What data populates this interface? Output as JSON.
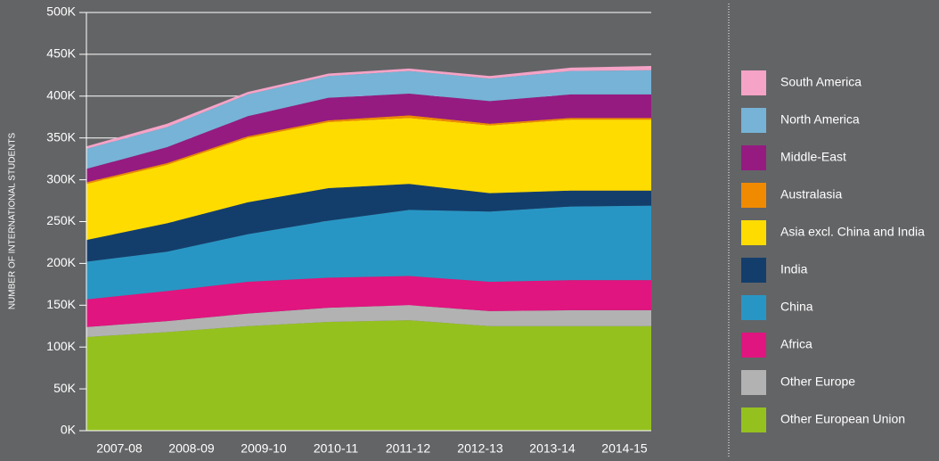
{
  "chart_data": {
    "type": "stacked_area",
    "y_label": "NUMBER OF INTERNATIONAL STUDENTS",
    "categories": [
      "2007-08",
      "2008-09",
      "2009-10",
      "2010-11",
      "2011-12",
      "2012-13",
      "2013-14",
      "2014-15"
    ],
    "series": [
      {
        "name": "Other European Union",
        "color": "#95c11f",
        "values": [
          112,
          118,
          125,
          130,
          132,
          125,
          125,
          125
        ]
      },
      {
        "name": "Other Europe",
        "color": "#b2b2b2",
        "values": [
          12,
          13,
          15,
          17,
          18,
          18,
          19,
          19
        ]
      },
      {
        "name": "Africa",
        "color": "#e0157f",
        "values": [
          33,
          36,
          38,
          36,
          35,
          35,
          36,
          36
        ]
      },
      {
        "name": "China",
        "color": "#2896c4",
        "values": [
          45,
          47,
          57,
          68,
          79,
          84,
          88,
          89
        ]
      },
      {
        "name": "India",
        "color": "#133e6c",
        "values": [
          26,
          34,
          38,
          39,
          31,
          22,
          19,
          18
        ]
      },
      {
        "name": "Asia excl. China and India",
        "color": "#ffdc00",
        "values": [
          67,
          70,
          77,
          79,
          79,
          81,
          85,
          85
        ]
      },
      {
        "name": "Australasia",
        "color": "#f08a00",
        "values": [
          2,
          2,
          2,
          2,
          3,
          2,
          2,
          2
        ]
      },
      {
        "name": "Middle-East",
        "color": "#951b81",
        "values": [
          16,
          19,
          24,
          27,
          26,
          27,
          28,
          28
        ]
      },
      {
        "name": "North America",
        "color": "#76b3d6",
        "values": [
          24,
          24,
          26,
          26,
          27,
          27,
          28,
          29
        ]
      },
      {
        "name": "South America",
        "color": "#f5a3c7",
        "values": [
          3,
          4,
          3,
          3,
          3,
          3,
          4,
          5
        ]
      }
    ],
    "ylim": [
      0,
      500
    ],
    "yticks": [
      {
        "value": 0,
        "label": "0K"
      },
      {
        "value": 50,
        "label": "50K"
      },
      {
        "value": 100,
        "label": "100K"
      },
      {
        "value": 150,
        "label": "150K"
      },
      {
        "value": 200,
        "label": "200K"
      },
      {
        "value": 250,
        "label": "250K"
      },
      {
        "value": 300,
        "label": "300K"
      },
      {
        "value": 350,
        "label": "350K"
      },
      {
        "value": 400,
        "label": "400K"
      },
      {
        "value": 450,
        "label": "450K"
      },
      {
        "value": 500,
        "label": "500K"
      }
    ],
    "grid": true
  }
}
